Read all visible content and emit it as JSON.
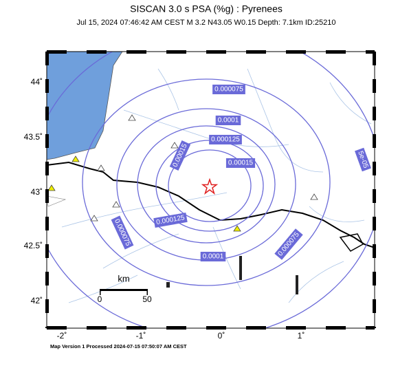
{
  "header": {
    "title": "SISCAN 3.0 s PSA (%g) : Pyrenees",
    "subtitle": "Jul 15, 2024 07:46:42 AM CEST   M 3.2   N43.05 W0.15   Depth: 7.1km   ID:25210"
  },
  "map": {
    "lat_labels": [
      "44˚",
      "43.5˚",
      "43˚",
      "42.5˚",
      "42˚"
    ],
    "lon_labels": [
      "-2˚",
      "-1˚",
      "0˚",
      "1˚"
    ],
    "contour_labels": [
      "0.000075",
      "0.0001",
      "0.000125",
      "0.00015",
      "0.00015",
      "0.000125",
      "0.0001",
      "0.000075",
      "0.000075",
      "5e-05"
    ],
    "scale": {
      "unit": "km",
      "start": "0",
      "end": "50"
    }
  },
  "footer": {
    "text": "Map Version 1 Processed 2024-07-15 07:50:07 AM CEST"
  }
}
